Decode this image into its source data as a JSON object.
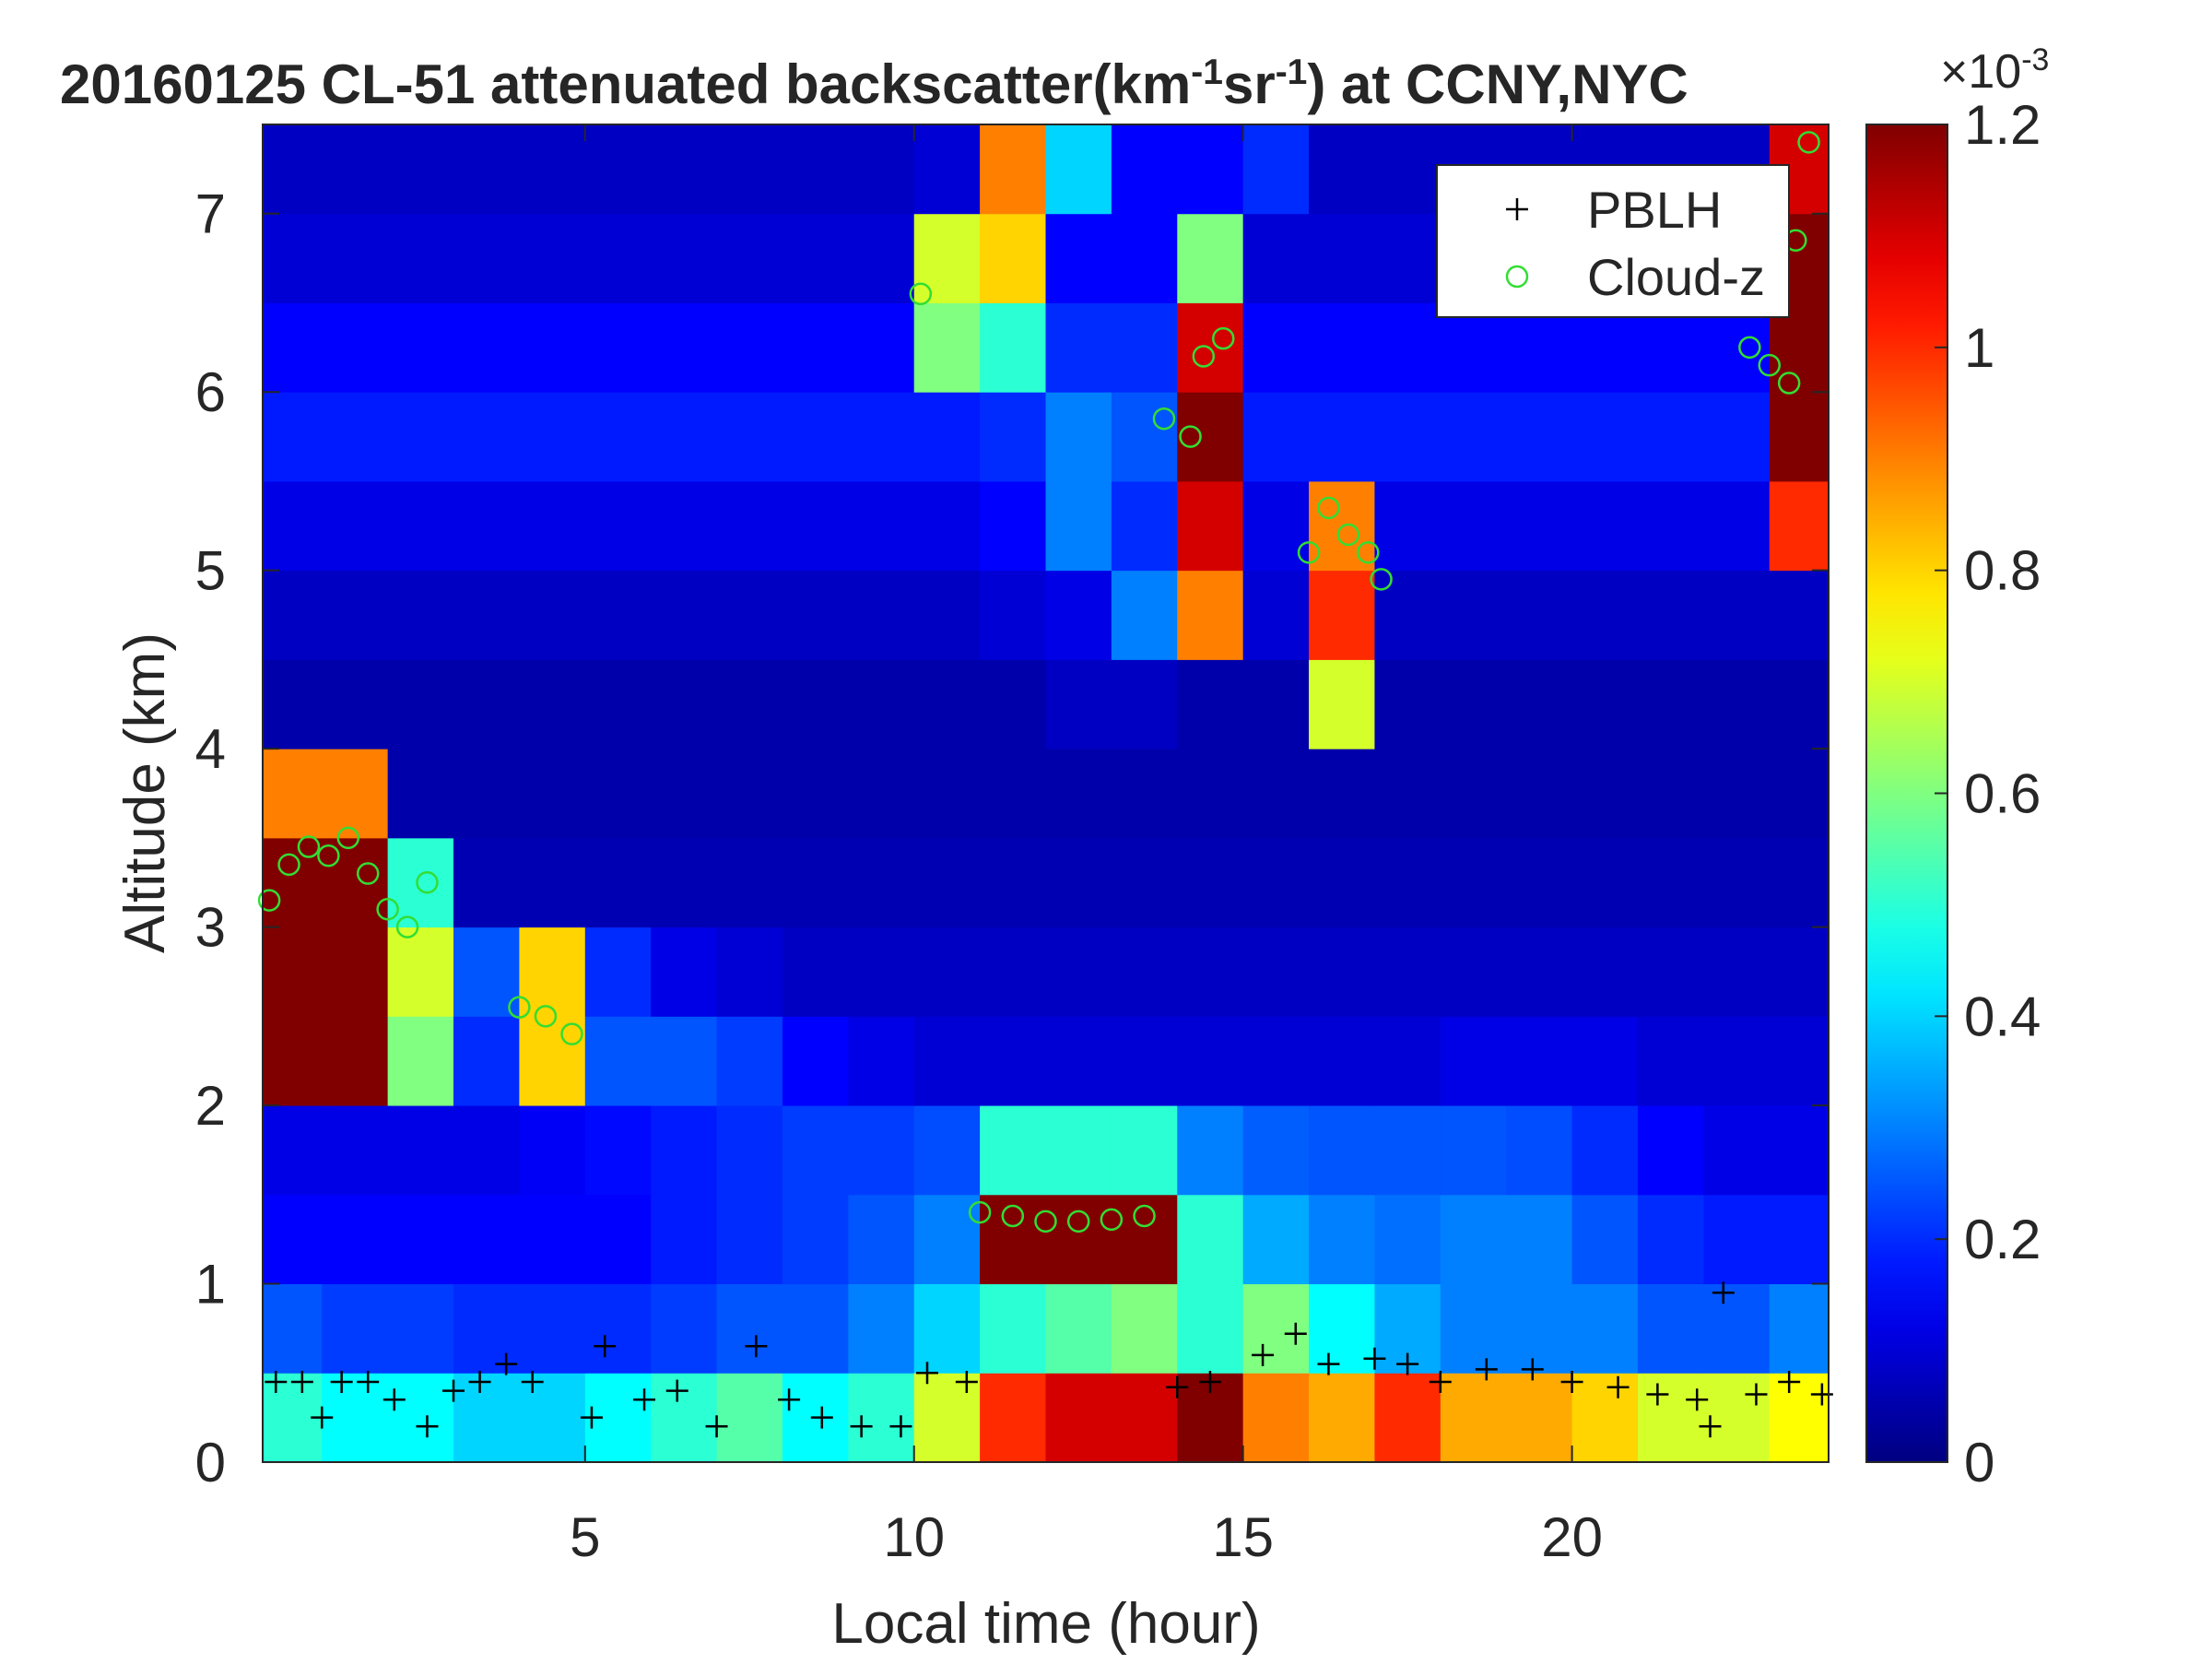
{
  "chart_data": {
    "type": "heatmap",
    "title_parts": [
      {
        "text": "20160125  CL-51 attenuated backscatter(km"
      },
      {
        "text": "-1",
        "sup": true
      },
      {
        "text": "sr"
      },
      {
        "text": "-1",
        "sup": true
      },
      {
        "text": ") at CCNY,NYC"
      }
    ],
    "x_label": "Local time (hour)",
    "y_label": "Altitude (km)",
    "xlim": [
      0.1,
      23.9
    ],
    "ylim": [
      0,
      7.5
    ],
    "xticks": [
      5,
      10,
      15,
      20
    ],
    "yticks": [
      0,
      1,
      2,
      3,
      4,
      5,
      6,
      7
    ],
    "colormap": "jet",
    "clim": [
      0,
      1.2
    ],
    "cticks": [
      0,
      0.2,
      0.4,
      0.6,
      0.8,
      1,
      1.2
    ],
    "colorbar_exponent": [
      {
        "text": "×10"
      },
      {
        "text": "-3",
        "sup": true
      }
    ],
    "xbins": [
      0,
      1,
      2,
      3,
      4,
      5,
      6,
      7,
      8,
      9,
      10,
      11,
      12,
      13,
      14,
      15,
      16,
      17,
      18,
      19,
      20,
      21,
      22,
      23,
      24
    ],
    "ybins": [
      0,
      0.5,
      1,
      1.5,
      2,
      2.5,
      3,
      3.5,
      4,
      4.5,
      5,
      5.5,
      6,
      6.5,
      7,
      7.5
    ],
    "z": [
      [
        0.5,
        0.45,
        0.45,
        0.4,
        0.4,
        0.45,
        0.5,
        0.55,
        0.45,
        0.5,
        0.7,
        1.0,
        1.1,
        1.1,
        1.2,
        0.9,
        0.85,
        1.0,
        0.85,
        0.85,
        0.8,
        0.7,
        0.7,
        0.75
      ],
      [
        0.25,
        0.22,
        0.22,
        0.2,
        0.2,
        0.2,
        0.22,
        0.25,
        0.25,
        0.3,
        0.4,
        0.5,
        0.55,
        0.6,
        0.5,
        0.6,
        0.45,
        0.35,
        0.3,
        0.3,
        0.3,
        0.25,
        0.25,
        0.3
      ],
      [
        0.15,
        0.15,
        0.15,
        0.15,
        0.15,
        0.15,
        0.18,
        0.2,
        0.22,
        0.25,
        0.3,
        1.2,
        1.2,
        1.2,
        0.5,
        0.35,
        0.3,
        0.28,
        0.3,
        0.3,
        0.25,
        0.2,
        0.18,
        0.18
      ],
      [
        0.12,
        0.12,
        0.12,
        0.12,
        0.14,
        0.16,
        0.18,
        0.2,
        0.22,
        0.22,
        0.24,
        0.5,
        0.5,
        0.5,
        0.3,
        0.26,
        0.25,
        0.25,
        0.25,
        0.24,
        0.2,
        0.15,
        0.12,
        0.12
      ],
      [
        1.2,
        1.2,
        0.6,
        0.2,
        0.8,
        0.25,
        0.25,
        0.22,
        0.15,
        0.12,
        0.1,
        0.1,
        0.1,
        0.1,
        0.1,
        0.1,
        0.1,
        0.1,
        0.12,
        0.12,
        0.12,
        0.1,
        0.1,
        0.1
      ],
      [
        1.2,
        1.2,
        0.7,
        0.25,
        0.8,
        0.2,
        0.12,
        0.1,
        0.08,
        0.08,
        0.08,
        0.08,
        0.08,
        0.08,
        0.08,
        0.08,
        0.08,
        0.08,
        0.08,
        0.08,
        0.08,
        0.08,
        0.08,
        0.08
      ],
      [
        1.2,
        1.2,
        0.5,
        0.06,
        0.06,
        0.06,
        0.06,
        0.06,
        0.06,
        0.06,
        0.06,
        0.06,
        0.06,
        0.06,
        0.06,
        0.06,
        0.06,
        0.06,
        0.06,
        0.06,
        0.06,
        0.06,
        0.06,
        0.06
      ],
      [
        0.9,
        0.9,
        0.05,
        0.05,
        0.05,
        0.05,
        0.05,
        0.05,
        0.05,
        0.05,
        0.05,
        0.05,
        0.05,
        0.05,
        0.05,
        0.05,
        0.05,
        0.05,
        0.05,
        0.05,
        0.05,
        0.05,
        0.05,
        0.05
      ],
      [
        0.05,
        0.05,
        0.05,
        0.05,
        0.05,
        0.05,
        0.05,
        0.05,
        0.05,
        0.05,
        0.05,
        0.05,
        0.08,
        0.08,
        0.05,
        0.05,
        0.7,
        0.05,
        0.05,
        0.05,
        0.05,
        0.05,
        0.05,
        0.05
      ],
      [
        0.08,
        0.08,
        0.08,
        0.08,
        0.08,
        0.08,
        0.08,
        0.08,
        0.08,
        0.08,
        0.08,
        0.1,
        0.12,
        0.3,
        0.9,
        0.1,
        1.0,
        0.08,
        0.08,
        0.08,
        0.08,
        0.08,
        0.08,
        0.08
      ],
      [
        0.12,
        0.12,
        0.12,
        0.12,
        0.12,
        0.12,
        0.12,
        0.12,
        0.12,
        0.12,
        0.12,
        0.15,
        0.3,
        0.2,
        1.1,
        0.12,
        0.9,
        0.12,
        0.12,
        0.12,
        0.12,
        0.12,
        0.12,
        1.0
      ],
      [
        0.18,
        0.18,
        0.18,
        0.18,
        0.18,
        0.18,
        0.18,
        0.18,
        0.18,
        0.18,
        0.18,
        0.2,
        0.3,
        0.25,
        1.2,
        0.18,
        0.18,
        0.18,
        0.18,
        0.18,
        0.18,
        0.18,
        0.18,
        1.2
      ],
      [
        0.15,
        0.15,
        0.15,
        0.15,
        0.15,
        0.15,
        0.15,
        0.15,
        0.15,
        0.15,
        0.6,
        0.5,
        0.2,
        0.2,
        1.1,
        0.15,
        0.15,
        0.15,
        0.15,
        0.15,
        0.15,
        0.15,
        0.15,
        1.2
      ],
      [
        0.1,
        0.1,
        0.1,
        0.1,
        0.1,
        0.1,
        0.1,
        0.1,
        0.1,
        0.1,
        0.7,
        0.8,
        0.15,
        0.15,
        0.6,
        0.1,
        0.1,
        0.1,
        0.1,
        0.1,
        0.1,
        0.1,
        0.1,
        1.2
      ],
      [
        0.08,
        0.08,
        0.08,
        0.08,
        0.08,
        0.08,
        0.08,
        0.08,
        0.08,
        0.08,
        0.1,
        0.9,
        0.4,
        0.15,
        0.15,
        0.2,
        0.08,
        0.08,
        0.08,
        0.08,
        0.08,
        0.08,
        0.08,
        1.1
      ]
    ],
    "legend": "upper right",
    "series": [
      {
        "name": "PBLH",
        "color": "#000000",
        "marker": "+",
        "x": [
          0.3,
          0.7,
          1.0,
          1.3,
          1.7,
          2.1,
          2.6,
          3.0,
          3.4,
          3.8,
          4.2,
          5.1,
          5.3,
          5.9,
          6.4,
          7.0,
          7.6,
          8.1,
          8.6,
          9.2,
          9.8,
          10.2,
          10.8,
          14.0,
          14.5,
          15.3,
          15.8,
          16.3,
          17.0,
          17.5,
          18.0,
          18.7,
          19.4,
          20.0,
          20.7,
          21.3,
          21.9,
          22.1,
          22.3,
          22.8,
          23.3,
          23.8
        ],
        "y": [
          0.45,
          0.45,
          0.25,
          0.45,
          0.45,
          0.35,
          0.2,
          0.4,
          0.45,
          0.55,
          0.45,
          0.25,
          0.65,
          0.35,
          0.4,
          0.2,
          0.65,
          0.35,
          0.25,
          0.2,
          0.2,
          0.5,
          0.45,
          0.42,
          0.45,
          0.6,
          0.72,
          0.55,
          0.58,
          0.55,
          0.45,
          0.52,
          0.52,
          0.45,
          0.42,
          0.38,
          0.35,
          0.2,
          0.95,
          0.38,
          0.45,
          0.38
        ]
      },
      {
        "name": "Cloud-z",
        "color": "#33dd33",
        "marker": "o",
        "x": [
          0.2,
          0.5,
          0.8,
          1.1,
          1.4,
          1.7,
          2.0,
          2.3,
          2.6,
          4.0,
          4.4,
          4.8,
          10.1,
          11.0,
          11.5,
          12.0,
          12.5,
          13.0,
          13.5,
          13.8,
          14.2,
          14.4,
          14.7,
          16.0,
          16.3,
          16.6,
          16.9,
          17.1,
          22.7,
          23.0,
          23.3,
          23.4,
          23.6
        ],
        "y": [
          3.15,
          3.35,
          3.45,
          3.4,
          3.5,
          3.3,
          3.1,
          3.0,
          3.25,
          2.55,
          2.5,
          2.4,
          6.55,
          1.4,
          1.38,
          1.35,
          1.35,
          1.36,
          1.38,
          5.85,
          5.75,
          6.2,
          6.3,
          5.1,
          5.35,
          5.2,
          5.1,
          4.95,
          6.25,
          6.15,
          6.05,
          6.85,
          7.4
        ]
      }
    ]
  }
}
